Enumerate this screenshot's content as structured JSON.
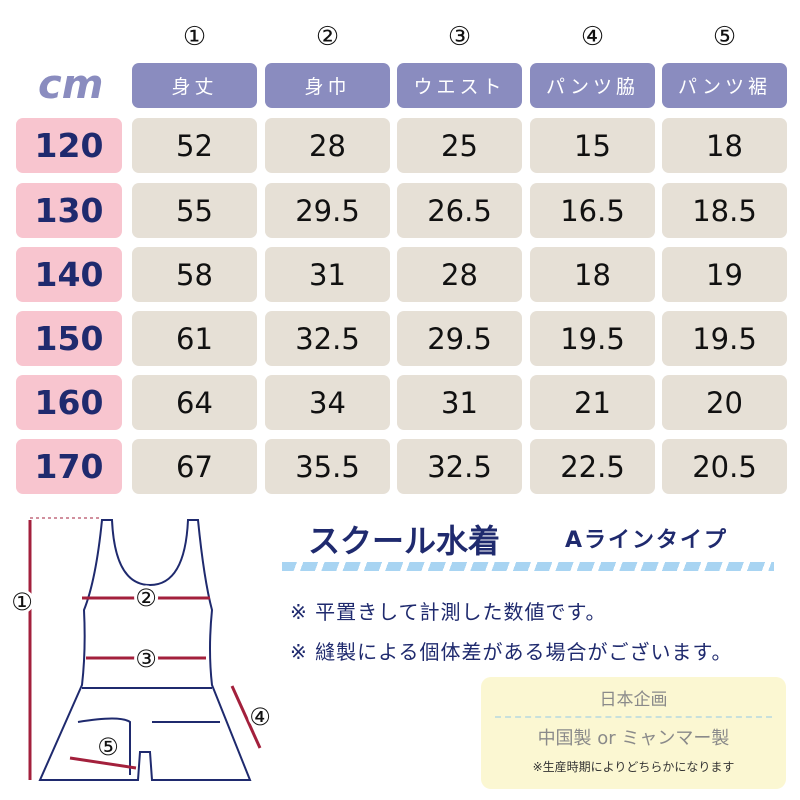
{
  "unit": "cm",
  "columns": [
    {
      "num": "①",
      "label": "身丈"
    },
    {
      "num": "②",
      "label": "身巾"
    },
    {
      "num": "③",
      "label": "ウエスト"
    },
    {
      "num": "④",
      "label": "パンツ脇"
    },
    {
      "num": "⑤",
      "label": "パンツ裾"
    }
  ],
  "rows": [
    {
      "size": "120",
      "values": [
        "52",
        "28",
        "25",
        "15",
        "18"
      ]
    },
    {
      "size": "130",
      "values": [
        "55",
        "29.5",
        "26.5",
        "16.5",
        "18.5"
      ]
    },
    {
      "size": "140",
      "values": [
        "58",
        "31",
        "28",
        "18",
        "19"
      ]
    },
    {
      "size": "150",
      "values": [
        "61",
        "32.5",
        "29.5",
        "19.5",
        "19.5"
      ]
    },
    {
      "size": "160",
      "values": [
        "64",
        "34",
        "31",
        "21",
        "20"
      ]
    },
    {
      "size": "170",
      "values": [
        "67",
        "35.5",
        "32.5",
        "22.5",
        "20.5"
      ]
    }
  ],
  "title": "スクール水着",
  "subtitle": "Aラインタイプ",
  "notes": [
    "※ 平置きして計測した数値です。",
    "※ 縫製による個体差がある場合がございます。"
  ],
  "origin": {
    "planning": "日本企画",
    "made": "中国製 or ミャンマー製",
    "note": "※生産時期によりどちらかになります"
  },
  "diagram_labels": [
    "①",
    "②",
    "③",
    "④",
    "⑤"
  ],
  "colors": {
    "header": "#8a8cbf",
    "size_bg": "#f8c5cf",
    "cell_bg": "#e6e0d6",
    "navy": "#1f2a6e",
    "arrow": "#a3203c"
  }
}
